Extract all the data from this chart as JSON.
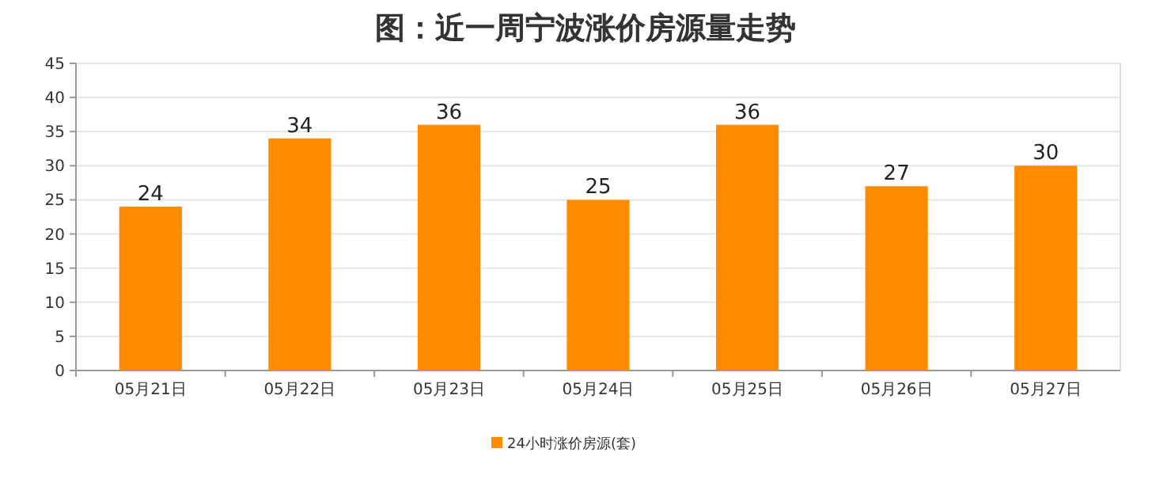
{
  "chart_data": {
    "type": "bar",
    "title": "图：近一周宁波涨价房源量走势",
    "categories": [
      "05月21日",
      "05月22日",
      "05月23日",
      "05月24日",
      "05月25日",
      "05月26日",
      "05月27日"
    ],
    "series": [
      {
        "name": "24小时涨价房源(套)",
        "color": "#ff8c00",
        "values": [
          24,
          34,
          36,
          25,
          36,
          27,
          30
        ]
      }
    ],
    "ylim": [
      0,
      45
    ],
    "yticks": [
      0,
      5,
      10,
      15,
      20,
      25,
      30,
      35,
      40,
      45
    ],
    "grid": "y",
    "data_labels": true,
    "legend": "bottom"
  }
}
